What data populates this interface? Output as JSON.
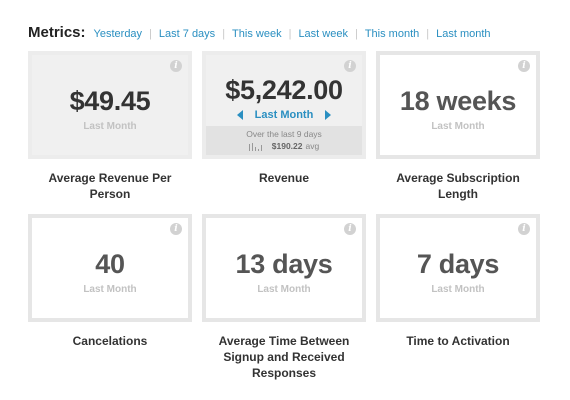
{
  "header": {
    "title": "Metrics:",
    "links": [
      "Yesterday",
      "Last 7 days",
      "This week",
      "Last week",
      "This month",
      "Last month"
    ]
  },
  "cards": [
    {
      "value": "$49.45",
      "period": "Last Month",
      "label": "Average Revenue Per Person"
    },
    {
      "value": "$5,242.00",
      "nav_label": "Last Month",
      "footer_line1": "Over the last 9 days",
      "footer_amount": "$190.22",
      "footer_suffix": "avg",
      "label": "Revenue"
    },
    {
      "value": "18 weeks",
      "period": "Last Month",
      "label": "Average Subscription Length"
    },
    {
      "value": "40",
      "period": "Last Month",
      "label": "Cancelations"
    },
    {
      "value": "13 days",
      "period": "Last Month",
      "label": "Average Time Between Signup and Received Responses"
    },
    {
      "value": "7 days",
      "period": "Last Month",
      "label": "Time to Activation"
    }
  ],
  "icons": {
    "info": "i",
    "info_icon": "info-icon",
    "prev_icon": "triangle-left-icon",
    "next_icon": "triangle-right-icon",
    "sparkline_icon": "sparkline-icon"
  },
  "colors": {
    "link": "#2a8fc1",
    "card_border": "#e6e6e6",
    "card_fill": "#f0f0f0",
    "footer": "#e2e2e2"
  }
}
